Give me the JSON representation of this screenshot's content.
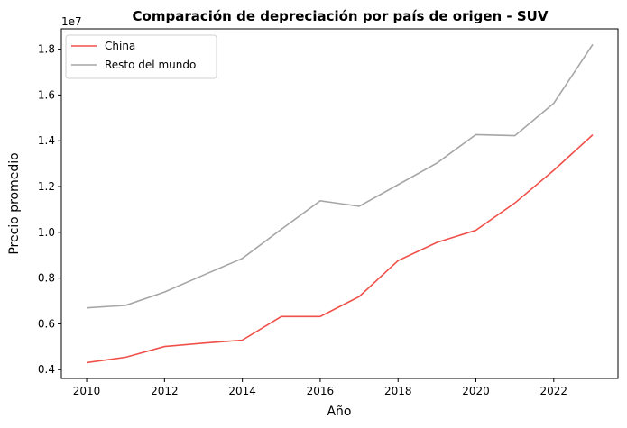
{
  "chart_data": {
    "type": "line",
    "title": "Comparación de depreciación por país de origen - SUV",
    "xlabel": "Año",
    "ylabel": "Precio promedio",
    "y_offset_text": "1e7",
    "x": [
      2010,
      2011,
      2012,
      2013,
      2014,
      2015,
      2016,
      2017,
      2018,
      2019,
      2020,
      2021,
      2022,
      2023
    ],
    "series": [
      {
        "name": "China",
        "color": "#f0504a",
        "values": [
          4310000,
          4540000,
          5010000,
          5160000,
          5290000,
          6320000,
          6320000,
          7190000,
          8760000,
          9560000,
          10090000,
          11280000,
          12710000,
          14260000
        ]
      },
      {
        "name": "Resto del mundo",
        "color": "#a6a6a6",
        "values": [
          6700000,
          6810000,
          7390000,
          8130000,
          8860000,
          10130000,
          11380000,
          11140000,
          12080000,
          13030000,
          14270000,
          14220000,
          15640000,
          18210000
        ]
      }
    ],
    "xticks": [
      2010,
      2012,
      2014,
      2016,
      2018,
      2020,
      2022
    ],
    "xtick_labels": [
      "2010",
      "2012",
      "2014",
      "2016",
      "2018",
      "2020",
      "2022"
    ],
    "yticks": [
      4000000,
      6000000,
      8000000,
      10000000,
      12000000,
      14000000,
      16000000,
      18000000
    ],
    "ytick_labels": [
      "0.4",
      "0.6",
      "0.8",
      "1.0",
      "1.2",
      "1.4",
      "1.6",
      "1.8"
    ],
    "xlim": [
      2009.35,
      2023.65
    ],
    "ylim": [
      3616000,
      18890000
    ],
    "grid": false,
    "legend_position": "upper-left"
  }
}
